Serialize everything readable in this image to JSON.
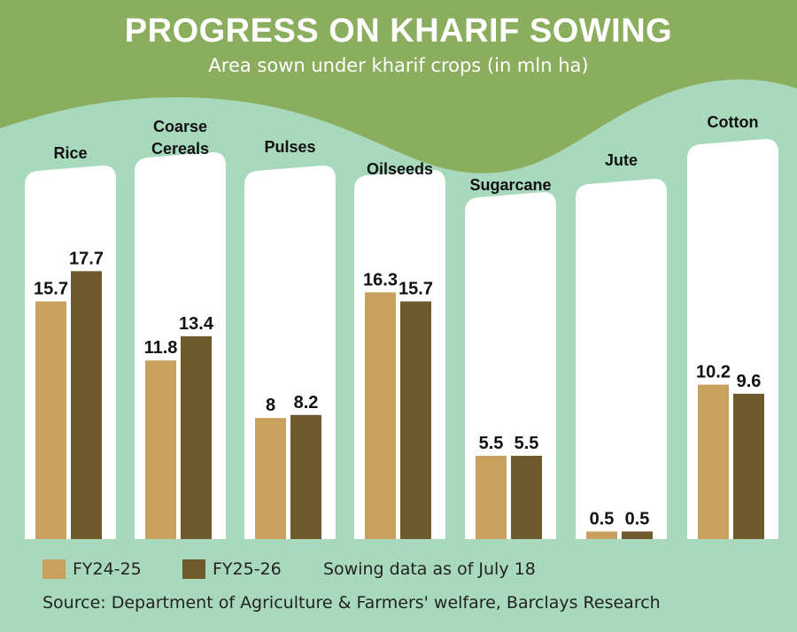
{
  "chart_data": {
    "type": "bar",
    "title": "PROGRESS ON KHARIF SOWING",
    "subtitle": "Area sown under kharif crops (in mln ha)",
    "categories": [
      "Rice",
      "Coarse Cereals",
      "Pulses",
      "Oilseeds",
      "Sugarcane",
      "Jute",
      "Cotton"
    ],
    "series": [
      {
        "name": "FY24-25",
        "values": [
          15.7,
          11.8,
          8,
          16.3,
          5.5,
          0.5,
          10.2
        ],
        "labels": [
          "15.7",
          "11.8",
          "8",
          "16.3",
          "5.5",
          "0.5",
          "10.2"
        ]
      },
      {
        "name": "FY25-26",
        "values": [
          17.7,
          13.4,
          8.2,
          15.7,
          5.5,
          0.5,
          9.6
        ],
        "labels": [
          "17.7",
          "13.4",
          "8.2",
          "15.7",
          "5.5",
          "0.5",
          "9.6"
        ]
      }
    ],
    "colors": {
      "FY24-25": "#c9a15e",
      "FY25-26": "#6e5a2c",
      "panel": "#ffffff",
      "background": "#a8d9bd",
      "banner": "#8aad5e"
    },
    "note": "Sowing data as of July 18",
    "source": "Source: Department of Agriculture & Farmers' welfare, Barclays Research",
    "ylim": [
      0,
      20
    ],
    "grid": false,
    "legend": "bottom-left"
  }
}
